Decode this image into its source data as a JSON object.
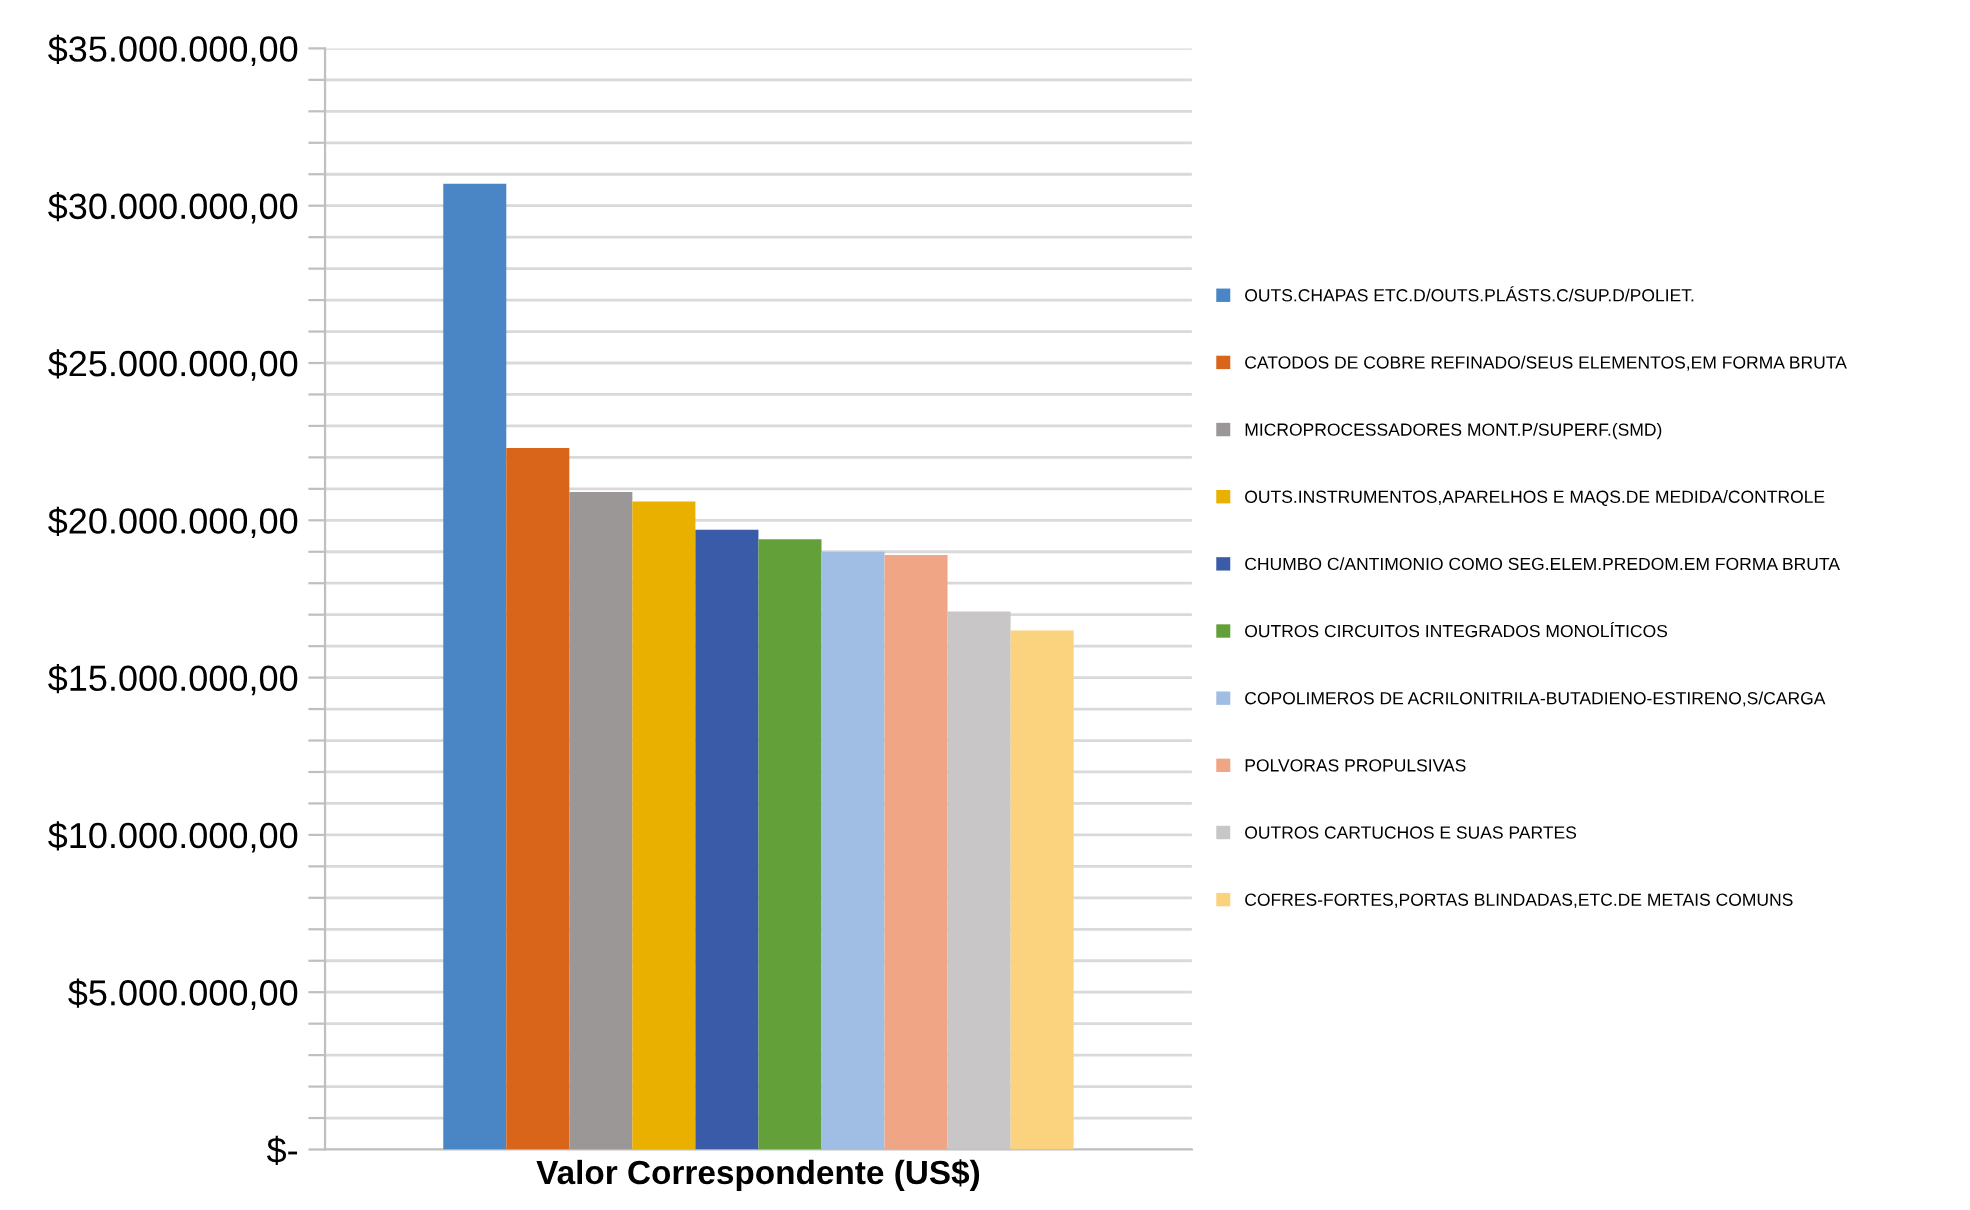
{
  "chart_data": {
    "type": "bar",
    "categories": [
      "Valor Correspondente (US$)"
    ],
    "series": [
      {
        "name": "OUTS.CHAPAS ETC.D/OUTS.PLÁSTS.C/SUP.D/POLIET.",
        "color": "#4a86c6",
        "values": [
          30700000
        ]
      },
      {
        "name": "CATODOS DE COBRE REFINADO/SEUS ELEMENTOS,EM FORMA BRUTA",
        "color": "#d9651a",
        "values": [
          22300000
        ]
      },
      {
        "name": "MICROPROCESSADORES MONT.P/SUPERF.(SMD)",
        "color": "#9a9796",
        "values": [
          20900000
        ]
      },
      {
        "name": "OUTS.INSTRUMENTOS,APARELHOS E MAQS.DE MEDIDA/CONTROLE",
        "color": "#eab000",
        "values": [
          20600000
        ]
      },
      {
        "name": "CHUMBO C/ANTIMONIO COMO SEG.ELEM.PREDOM.EM FORMA BRUTA",
        "color": "#3a5ca8",
        "values": [
          19700000
        ]
      },
      {
        "name": "OUTROS CIRCUITOS INTEGRADOS MONOLÍTICOS",
        "color": "#64a03a",
        "values": [
          19400000
        ]
      },
      {
        "name": "COPOLIMEROS DE ACRILONITRILA-BUTADIENO-ESTIRENO,S/CARGA",
        "color": "#a0bde3",
        "values": [
          19000000
        ]
      },
      {
        "name": "POLVORAS PROPULSIVAS",
        "color": "#f0a585",
        "values": [
          18900000
        ]
      },
      {
        "name": "OUTROS CARTUCHOS E SUAS PARTES",
        "color": "#c8c6c6",
        "values": [
          17100000
        ]
      },
      {
        "name": "COFRES-FORTES,PORTAS BLINDADAS,ETC.DE METAIS COMUNS",
        "color": "#fbd27e",
        "values": [
          16500000
        ]
      }
    ],
    "ylim": [
      0,
      35000000
    ],
    "yticks": [
      {
        "value": 0,
        "label": "$-"
      },
      {
        "value": 1000000,
        "label": null
      },
      {
        "value": 2000000,
        "label": null
      },
      {
        "value": 3000000,
        "label": null
      },
      {
        "value": 4000000,
        "label": null
      },
      {
        "value": 5000000,
        "label": "$5.000.000,00"
      },
      {
        "value": 6000000,
        "label": null
      },
      {
        "value": 7000000,
        "label": null
      },
      {
        "value": 8000000,
        "label": null
      },
      {
        "value": 9000000,
        "label": null
      },
      {
        "value": 10000000,
        "label": "$10.000.000,00"
      },
      {
        "value": 11000000,
        "label": null
      },
      {
        "value": 12000000,
        "label": null
      },
      {
        "value": 13000000,
        "label": null
      },
      {
        "value": 14000000,
        "label": null
      },
      {
        "value": 15000000,
        "label": "$15.000.000,00"
      },
      {
        "value": 16000000,
        "label": null
      },
      {
        "value": 17000000,
        "label": null
      },
      {
        "value": 18000000,
        "label": null
      },
      {
        "value": 19000000,
        "label": null
      },
      {
        "value": 20000000,
        "label": "$20.000.000,00"
      },
      {
        "value": 21000000,
        "label": null
      },
      {
        "value": 22000000,
        "label": null
      },
      {
        "value": 23000000,
        "label": null
      },
      {
        "value": 24000000,
        "label": null
      },
      {
        "value": 25000000,
        "label": "$25.000.000,00"
      },
      {
        "value": 26000000,
        "label": null
      },
      {
        "value": 27000000,
        "label": null
      },
      {
        "value": 28000000,
        "label": null
      },
      {
        "value": 29000000,
        "label": null
      },
      {
        "value": 30000000,
        "label": "$30.000.000,00"
      },
      {
        "value": 31000000,
        "label": null
      },
      {
        "value": 32000000,
        "label": null
      },
      {
        "value": 33000000,
        "label": null
      },
      {
        "value": 34000000,
        "label": null
      },
      {
        "value": 35000000,
        "label": "$35.000.000,00"
      }
    ],
    "grid": "y",
    "legend": "right"
  }
}
